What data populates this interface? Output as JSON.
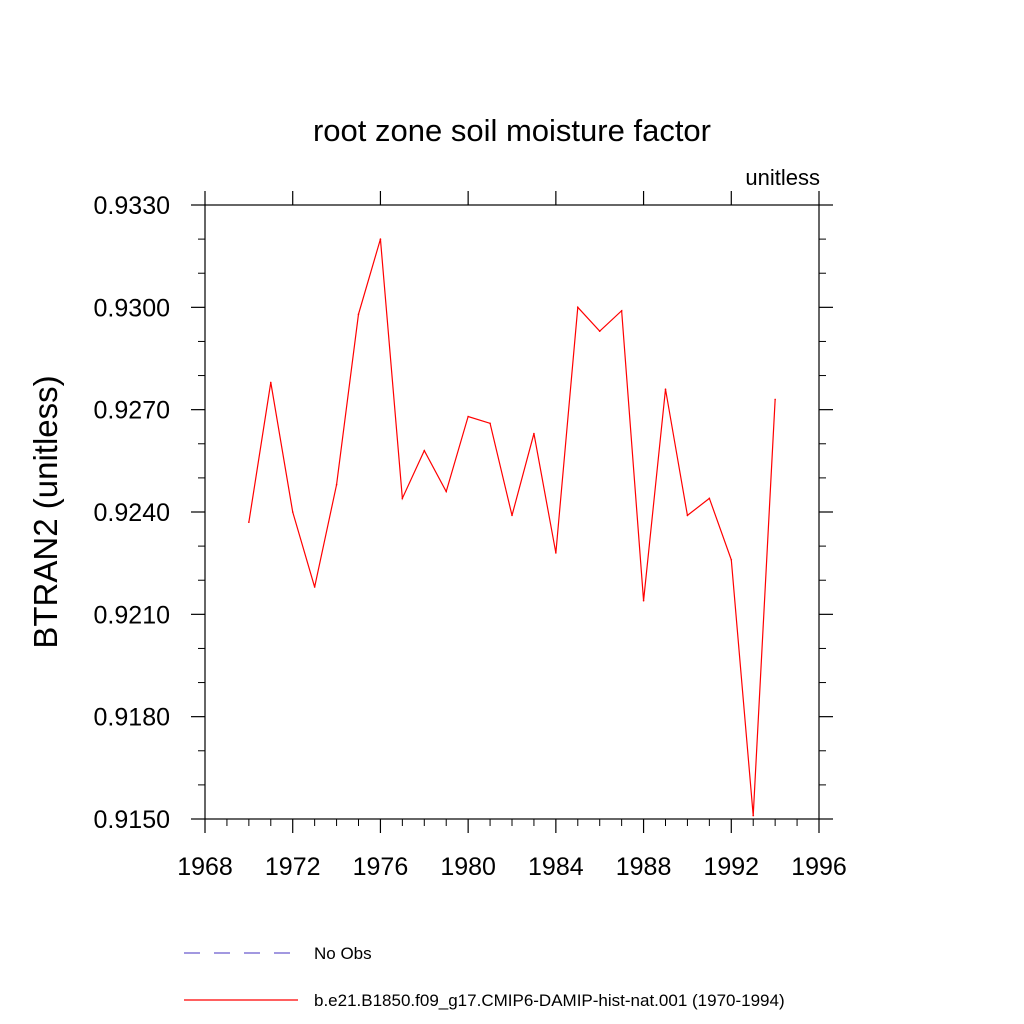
{
  "chart_data": {
    "type": "line",
    "title": "root zone soil moisture factor",
    "units_label": "unitless",
    "xlabel": "",
    "ylabel": "BTRAN2  (unitless)",
    "xlim": [
      1968,
      1996
    ],
    "ylim": [
      0.915,
      0.933
    ],
    "x_ticks": [
      1968,
      1972,
      1976,
      1980,
      1984,
      1988,
      1992,
      1996
    ],
    "x_tick_labels": [
      "1968",
      "1972",
      "1976",
      "1980",
      "1984",
      "1988",
      "1992",
      "1996"
    ],
    "y_ticks": [
      0.915,
      0.918,
      0.921,
      0.924,
      0.927,
      0.93,
      0.933
    ],
    "y_tick_labels": [
      "0.9150",
      "0.9180",
      "0.9210",
      "0.9240",
      "0.9270",
      "0.9300",
      "0.9330"
    ],
    "grid": false,
    "legend_position": "bottom",
    "series": [
      {
        "name": "No Obs",
        "style": "dashed",
        "color": "#6a5acd",
        "x": [],
        "y": []
      },
      {
        "name": "b.e21.B1850.f09_g17.CMIP6-DAMIP-hist-nat.001 (1970-1994)",
        "style": "solid",
        "color": "#ff0000",
        "x": [
          1970,
          1971,
          1972,
          1973,
          1974,
          1975,
          1976,
          1977,
          1978,
          1979,
          1980,
          1981,
          1982,
          1983,
          1984,
          1985,
          1986,
          1987,
          1988,
          1989,
          1990,
          1991,
          1992,
          1993,
          1994
        ],
        "y": [
          0.9237,
          0.9278,
          0.924,
          0.9218,
          0.9248,
          0.9298,
          0.932,
          0.9244,
          0.9258,
          0.9246,
          0.9268,
          0.9266,
          0.9239,
          0.9263,
          0.9228,
          0.93,
          0.9293,
          0.9299,
          0.9214,
          0.9276,
          0.9239,
          0.9244,
          0.9226,
          0.9151,
          0.9273
        ]
      }
    ]
  }
}
